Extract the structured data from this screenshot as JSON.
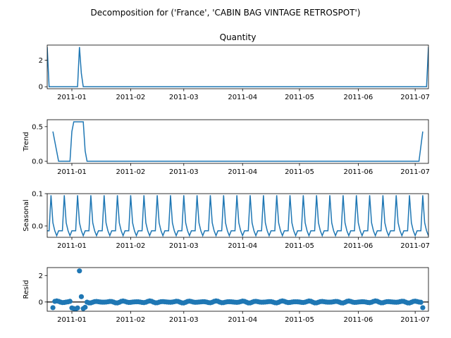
{
  "figure": {
    "suptitle": "Decomposition for ('France', 'CABIN BAG VINTAGE RETROSPOT')"
  },
  "chart_data": [
    {
      "type": "line",
      "title": "Quantity",
      "ylabel": "",
      "x_start": "2010-12-19",
      "x_end": "2011-07-08",
      "x_ticks": [
        "2011-01",
        "2011-02",
        "2011-03",
        "2011-04",
        "2011-05",
        "2011-06",
        "2011-07"
      ],
      "y_ticks": [
        0,
        2
      ],
      "ylim": [
        -0.15,
        3.15
      ],
      "series": [
        {
          "points": [
            [
              "2010-12-19",
              3
            ],
            [
              "2010-12-20",
              0
            ],
            [
              "2011-01-04",
              0
            ],
            [
              "2011-01-05",
              3
            ],
            [
              "2011-01-06",
              1
            ],
            [
              "2011-01-07",
              0
            ],
            [
              "2011-07-07",
              0
            ],
            [
              "2011-07-08",
              3
            ]
          ]
        }
      ],
      "color": "#1f77b4"
    },
    {
      "type": "line",
      "title": "",
      "ylabel": "Trend",
      "x_start": "2010-12-19",
      "x_end": "2011-07-08",
      "x_ticks": [
        "2011-01",
        "2011-02",
        "2011-03",
        "2011-04",
        "2011-05",
        "2011-06",
        "2011-07"
      ],
      "y_ticks": [
        0.0,
        0.5
      ],
      "y_tick_labels": [
        "0.0",
        "0.5"
      ],
      "ylim": [
        -0.03,
        0.6
      ],
      "series": [
        {
          "points": [
            [
              "2010-12-22",
              0.43
            ],
            [
              "2010-12-25",
              0
            ],
            [
              "2010-12-31",
              0
            ],
            [
              "2011-01-01",
              0.43
            ],
            [
              "2011-01-02",
              0.57
            ],
            [
              "2011-01-07",
              0.57
            ],
            [
              "2011-01-08",
              0.15
            ],
            [
              "2011-01-09",
              0
            ],
            [
              "2011-07-03",
              0
            ],
            [
              "2011-07-05",
              0.43
            ]
          ]
        }
      ],
      "color": "#1f77b4"
    },
    {
      "type": "line",
      "title": "",
      "ylabel": "Seasonal",
      "x_start": "2010-12-19",
      "x_end": "2011-07-08",
      "x_ticks": [
        "2011-01",
        "2011-02",
        "2011-03",
        "2011-04",
        "2011-05",
        "2011-06",
        "2011-07"
      ],
      "y_ticks": [
        0.0,
        0.1
      ],
      "y_tick_labels": [
        "0.0",
        "0.1"
      ],
      "ylim": [
        -0.035,
        0.1
      ],
      "period": 7,
      "first_peak": "2010-12-21",
      "pattern": [
        0.095,
        0.01,
        -0.015,
        -0.03,
        -0.015,
        -0.015,
        -0.015
      ],
      "series": [
        {
          "name": "",
          "values_pattern_repeats": true
        }
      ],
      "color": "#1f77b4"
    },
    {
      "type": "scatter",
      "title": "",
      "ylabel": "Resid",
      "x_start": "2010-12-19",
      "x_end": "2011-07-08",
      "x_ticks": [
        "2011-01",
        "2011-02",
        "2011-03",
        "2011-04",
        "2011-05",
        "2011-06",
        "2011-07"
      ],
      "y_ticks": [
        0,
        2
      ],
      "ylim": [
        -0.7,
        2.6
      ],
      "outliers": [
        [
          "2010-12-22",
          -0.43
        ],
        [
          "2010-12-31",
          0.05
        ],
        [
          "2011-01-01",
          -0.45
        ],
        [
          "2011-01-02",
          -0.5
        ],
        [
          "2011-01-03",
          -0.55
        ],
        [
          "2011-01-04",
          -0.45
        ],
        [
          "2011-01-05",
          2.35
        ],
        [
          "2011-01-06",
          0.4
        ],
        [
          "2011-01-07",
          -0.5
        ],
        [
          "2011-01-08",
          -0.4
        ],
        [
          "2011-07-05",
          -0.43
        ]
      ],
      "baseline_start": "2010-12-23",
      "baseline_end": "2011-07-04",
      "baseline_amplitude": 0.08,
      "hline": 0,
      "color": "#1f77b4"
    }
  ]
}
